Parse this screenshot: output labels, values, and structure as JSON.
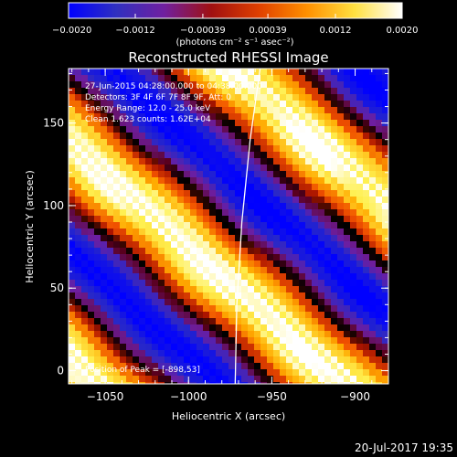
{
  "chart_data": {
    "type": "heatmap",
    "title": "Reconstructed RHESSI Image",
    "xlabel": "Heliocentric X (arcsec)",
    "ylabel": "Heliocentric Y (arcsec)",
    "xlim": [
      -1072,
      -880
    ],
    "ylim": [
      -8,
      183
    ],
    "x_ticks": [
      -1050,
      -1000,
      -950,
      -900
    ],
    "x_tick_labels": [
      "−1050",
      "−1000",
      "−950",
      "−900"
    ],
    "y_ticks": [
      0,
      50,
      100,
      150
    ],
    "y_tick_labels": [
      "0",
      "50",
      "100",
      "150"
    ],
    "colorbar": {
      "min": -0.002,
      "max": 0.002,
      "ticks": [
        -0.002,
        -0.0012,
        -0.00039,
        0.00039,
        0.0012,
        0.002
      ],
      "tick_labels": [
        "−0.0020",
        "−0.0012",
        "−0.00039",
        "0.00039",
        "0.0012",
        "0.0020"
      ],
      "label": "(photons cm⁻² s⁻¹ asec⁻²)",
      "colors": [
        "#0000ff",
        "#3030c0",
        "#7020a0",
        "#a01010",
        "#e04000",
        "#ff9000",
        "#ffe040",
        "#ffffff"
      ]
    },
    "annotations": {
      "time_range": "27-Jun-2015 04:28:00.000 to 04:38:00.000",
      "detectors": "Detectors: 3F 4F 6F 7F 8F 9F, Att: 0",
      "energy": "Energy Range: 12.0 - 25.0 keV",
      "clean": "Clean   1.623 counts: 1.62E+04",
      "position": "Position of Peak = [-898,53]"
    },
    "limb_curve": [
      [
        -972,
        -8
      ],
      [
        -971,
        40
      ],
      [
        -968,
        90
      ],
      [
        -963,
        140
      ],
      [
        -957,
        183
      ]
    ],
    "stripes": {
      "direction": "diagonal-down-right",
      "pattern": [
        "high",
        "low",
        "high",
        "low",
        "high"
      ]
    }
  },
  "footer": {
    "datetime": "20-Jul-2017 19:35"
  }
}
